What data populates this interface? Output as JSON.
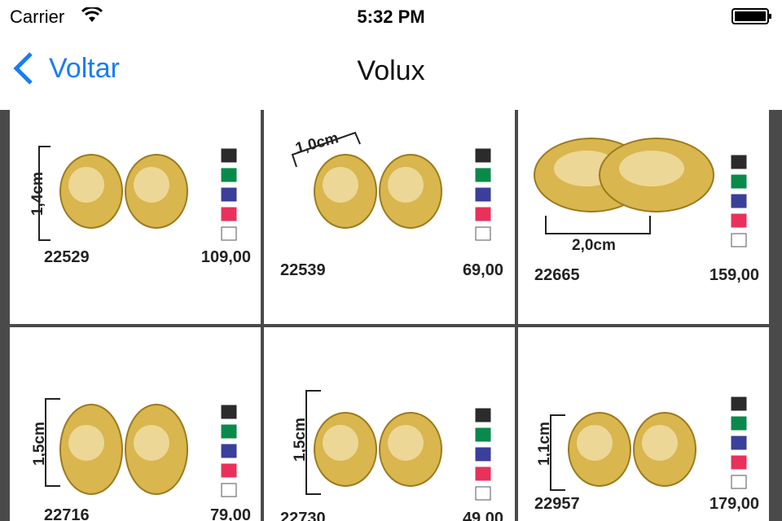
{
  "status_bar": {
    "carrier": "Carrier",
    "time": "5:32 PM"
  },
  "nav_bar": {
    "back": "Voltar",
    "title": "Volux"
  },
  "products": [
    {
      "code": "22529",
      "price": "109,00",
      "size": "1,4cm"
    },
    {
      "code": "22539",
      "price": "69,00",
      "size": "1,0cm"
    },
    {
      "code": "22665",
      "price": "159,00",
      "size": "2,0cm"
    },
    {
      "code": "22716",
      "price": "79,00",
      "size": "1,5cm"
    },
    {
      "code": "22730",
      "price": "49,00",
      "size": "1,5cm"
    },
    {
      "code": "22957",
      "price": "179,00",
      "size": "1,1cm"
    }
  ]
}
